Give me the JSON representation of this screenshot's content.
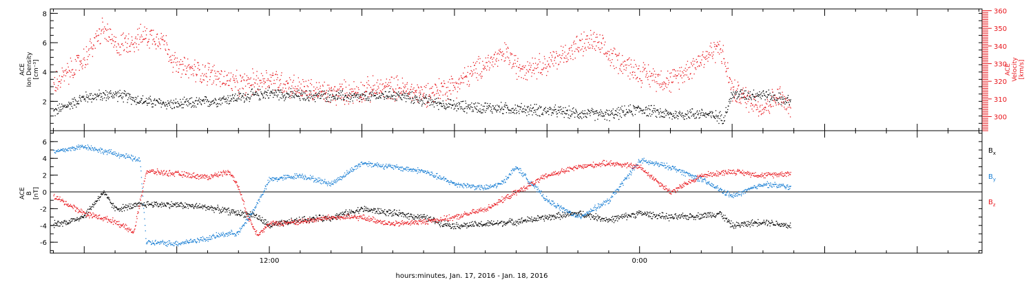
{
  "figure": {
    "xlabel": "hours:minutes, Jan. 17, 2016 - Jan. 18, 2016",
    "x_ticks": [
      {
        "value": 12,
        "label": "12:00"
      },
      {
        "value": 24,
        "label": "0:00"
      }
    ],
    "x_minor_step_hours": 1,
    "xlim_hours": [
      4.9,
      35.1
    ],
    "data_end_hours": 28.9
  },
  "chart_data": [
    {
      "type": "scatter",
      "panel": "ion-density-velocity",
      "ylabel": [
        "ACE",
        "Ion Density",
        "[cm⁻³]"
      ],
      "ylabel_right": [
        "ACE",
        "Velocity",
        "[km/s]"
      ],
      "ylim": [
        0,
        8.3
      ],
      "y_ticks": [
        2,
        4,
        6,
        8
      ],
      "ylim_right": [
        292,
        361
      ],
      "y_ticks_right": [
        300,
        310,
        320,
        330,
        340,
        350,
        360
      ],
      "colors": {
        "density": "#000000",
        "velocity": "#e8151b"
      },
      "series": [
        {
          "name": "",
          "axis": "left",
          "color": "#000000",
          "x": [
            5.0,
            6.0,
            7.0,
            8.0,
            9.0,
            10.0,
            11.0,
            12.0,
            13.0,
            14.0,
            15.0,
            16.0,
            17.0,
            18.0,
            19.0,
            20.0,
            21.0,
            22.0,
            23.0,
            24.0,
            25.0,
            26.0,
            26.7,
            27.0,
            28.0,
            28.9
          ],
          "y": [
            1.3,
            2.3,
            2.5,
            2.0,
            1.8,
            2.0,
            2.3,
            2.6,
            2.4,
            2.4,
            2.3,
            2.5,
            2.1,
            1.7,
            1.6,
            1.5,
            1.4,
            1.2,
            1.1,
            1.5,
            1.1,
            1.2,
            0.9,
            2.5,
            2.5,
            2.0
          ]
        },
        {
          "name": "",
          "axis": "right",
          "color": "#e8151b",
          "x": [
            5.0,
            6.0,
            6.6,
            7.0,
            8.0,
            8.5,
            9.0,
            10.0,
            11.0,
            12.0,
            13.0,
            14.0,
            15.0,
            16.0,
            17.0,
            18.0,
            19.0,
            19.7,
            20.0,
            21.0,
            22.0,
            22.5,
            23.0,
            24.0,
            25.0,
            26.0,
            26.6,
            27.0,
            28.0,
            28.5,
            28.9
          ],
          "y": [
            318,
            333,
            350,
            340,
            346,
            345,
            328,
            325,
            318,
            322,
            316,
            313,
            315,
            317,
            313,
            318,
            330,
            336,
            328,
            330,
            340,
            343,
            335,
            325,
            320,
            333,
            340,
            315,
            305,
            312,
            303
          ]
        }
      ]
    },
    {
      "type": "scatter",
      "panel": "magnetic-field",
      "ylabel": [
        "ACE",
        "B",
        "[nT]"
      ],
      "ylim": [
        -7.3,
        7.3
      ],
      "y_ticks": [
        -6,
        -4,
        -2,
        0,
        2,
        4,
        6
      ],
      "zero_line": true,
      "series": [
        {
          "name": "Bx",
          "color": "#000000",
          "x": [
            5.0,
            5.5,
            6.0,
            6.6,
            7.0,
            8.0,
            9.0,
            10.0,
            11.0,
            11.5,
            12.0,
            13.0,
            14.0,
            15.0,
            16.0,
            17.0,
            17.5,
            18.0,
            19.0,
            20.0,
            21.0,
            22.0,
            23.0,
            24.0,
            25.0,
            26.0,
            26.6,
            27.0,
            28.0,
            28.9
          ],
          "y": [
            -3.8,
            -3.5,
            -2.8,
            0.0,
            -2.0,
            -1.4,
            -1.5,
            -1.8,
            -2.5,
            -2.7,
            -4.0,
            -3.3,
            -3.0,
            -2.0,
            -2.5,
            -3.0,
            -3.6,
            -4.0,
            -3.8,
            -3.5,
            -3.0,
            -2.5,
            -3.3,
            -2.5,
            -3.0,
            -2.8,
            -2.5,
            -4.0,
            -3.5,
            -4.0
          ]
        },
        {
          "name": "By",
          "color": "#1a7fd4",
          "x": [
            5.0,
            6.0,
            6.5,
            7.0,
            7.8,
            8.0,
            9.0,
            10.0,
            10.5,
            11.0,
            11.5,
            12.0,
            13.0,
            14.0,
            15.0,
            16.0,
            17.0,
            18.0,
            19.0,
            19.5,
            20.0,
            21.0,
            22.0,
            23.0,
            24.0,
            25.0,
            26.0,
            27.0,
            28.0,
            28.9
          ],
          "y": [
            4.8,
            5.5,
            5.0,
            4.6,
            3.8,
            -6.0,
            -6.1,
            -5.5,
            -5.0,
            -4.8,
            -2.0,
            1.5,
            2.0,
            1.0,
            3.5,
            3.0,
            2.5,
            1.0,
            0.5,
            1.0,
            3.0,
            -1.0,
            -3.0,
            -1.0,
            3.8,
            3.0,
            1.5,
            -0.5,
            1.0,
            0.6
          ]
        },
        {
          "name": "Bz",
          "color": "#e8151b",
          "x": [
            5.0,
            6.0,
            7.0,
            7.6,
            8.0,
            9.0,
            10.0,
            10.7,
            11.0,
            11.3,
            11.6,
            12.0,
            13.0,
            14.0,
            15.0,
            16.0,
            17.0,
            18.0,
            19.0,
            20.0,
            21.0,
            22.0,
            23.0,
            24.0,
            25.0,
            26.0,
            27.0,
            28.0,
            28.9
          ],
          "y": [
            -0.5,
            -2.5,
            -3.5,
            -4.8,
            2.5,
            2.2,
            1.8,
            2.5,
            0.5,
            -3.0,
            -5.0,
            -3.8,
            -3.5,
            -3.0,
            -3.0,
            -3.8,
            -3.5,
            -3.0,
            -2.0,
            0.0,
            2.0,
            3.0,
            3.5,
            3.0,
            0.0,
            2.0,
            2.5,
            2.0,
            2.3
          ]
        }
      ],
      "legend": [
        {
          "base": "B",
          "sub": "x",
          "color": "#000000"
        },
        {
          "base": "B",
          "sub": "y",
          "color": "#1a7fd4"
        },
        {
          "base": "B",
          "sub": "z",
          "color": "#e8151b"
        }
      ],
      "legend_position": "right"
    }
  ]
}
